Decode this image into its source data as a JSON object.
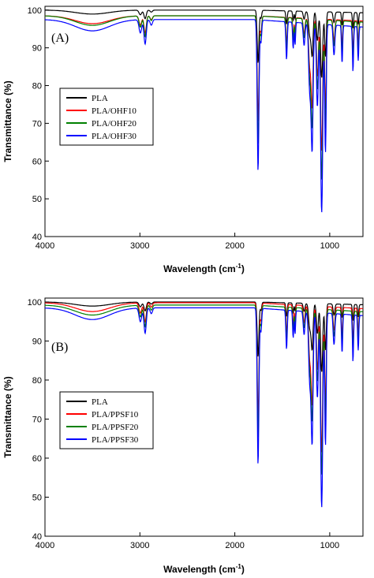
{
  "figure": {
    "y_axis_label": "Transmittance (%)",
    "x_axis_label_main": "Wavelength (cm",
    "x_axis_label_sup": "-1",
    "x_axis_label_end": ")"
  },
  "chart_data": [
    {
      "type": "line",
      "panel_label": "(A)",
      "xlim": [
        4000,
        650
      ],
      "ylim": [
        40,
        101
      ],
      "x_ticks": [
        4000,
        3000,
        2000,
        1000
      ],
      "y_ticks": [
        40,
        50,
        60,
        70,
        80,
        90,
        100
      ],
      "xlabel": "Wavelength (cm-1)",
      "ylabel": "Transmittance (%)",
      "legend_position": "left",
      "grid": false,
      "series": [
        {
          "name": "PLA",
          "color": "#000000",
          "offset": 0,
          "scale": 0.35
        },
        {
          "name": "PLA/OHF10",
          "color": "#ff0000",
          "offset": -1.5,
          "scale": 0.7
        },
        {
          "name": "PLA/OHF20",
          "color": "#008000",
          "offset": -1.5,
          "scale": 0.85
        },
        {
          "name": "PLA/OHF30",
          "color": "#0000ff",
          "offset": -2.5,
          "scale": 1.0
        }
      ]
    },
    {
      "type": "line",
      "panel_label": "(B)",
      "xlim": [
        4000,
        650
      ],
      "ylim": [
        40,
        101
      ],
      "x_ticks": [
        4000,
        3000,
        2000,
        1000
      ],
      "y_ticks": [
        40,
        50,
        60,
        70,
        80,
        90,
        100
      ],
      "xlabel": "Wavelength (cm-1)",
      "ylabel": "Transmittance (%)",
      "legend_position": "left",
      "grid": false,
      "series": [
        {
          "name": "PLA",
          "color": "#000000",
          "offset": 0,
          "scale": 0.35
        },
        {
          "name": "PLA/PPSF10",
          "color": "#ff0000",
          "offset": -0.2,
          "scale": 0.75
        },
        {
          "name": "PLA/PPSF20",
          "color": "#008000",
          "offset": -0.8,
          "scale": 0.85
        },
        {
          "name": "PLA/PPSF30",
          "color": "#0000ff",
          "offset": -1.5,
          "scale": 1.0
        }
      ]
    }
  ]
}
